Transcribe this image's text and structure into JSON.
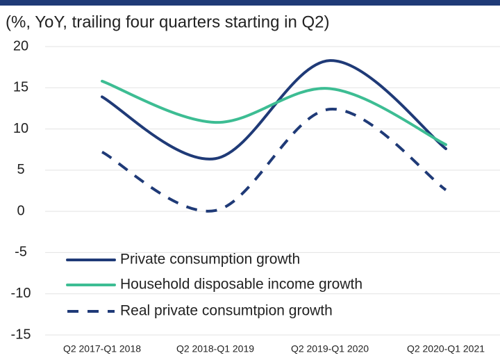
{
  "chart_data": {
    "type": "line",
    "subtitle": "(%, YoY, trailing four quarters starting in Q2)",
    "categories": [
      "Q2 2017-Q1 2018",
      "Q2 2018-Q1 2019",
      "Q2 2019-Q1 2020",
      "Q2 2020-Q1 2021"
    ],
    "series": [
      {
        "name": "Private consumption growth",
        "color": "#1f3a77",
        "dashed": false,
        "values": [
          13.9,
          6.4,
          18.3,
          7.6
        ]
      },
      {
        "name": "Household disposable income growth",
        "color": "#3dbd93",
        "dashed": false,
        "values": [
          15.8,
          10.8,
          14.9,
          8.1
        ]
      },
      {
        "name": "Real private consumtpion growth",
        "color": "#1f3a77",
        "dashed": true,
        "values": [
          7.2,
          0.1,
          12.4,
          2.6
        ]
      }
    ],
    "ylim": [
      -15,
      20
    ],
    "yticks": [
      -15,
      -10,
      -5,
      0,
      5,
      10,
      15,
      20
    ],
    "grid": true,
    "smooth": true
  }
}
